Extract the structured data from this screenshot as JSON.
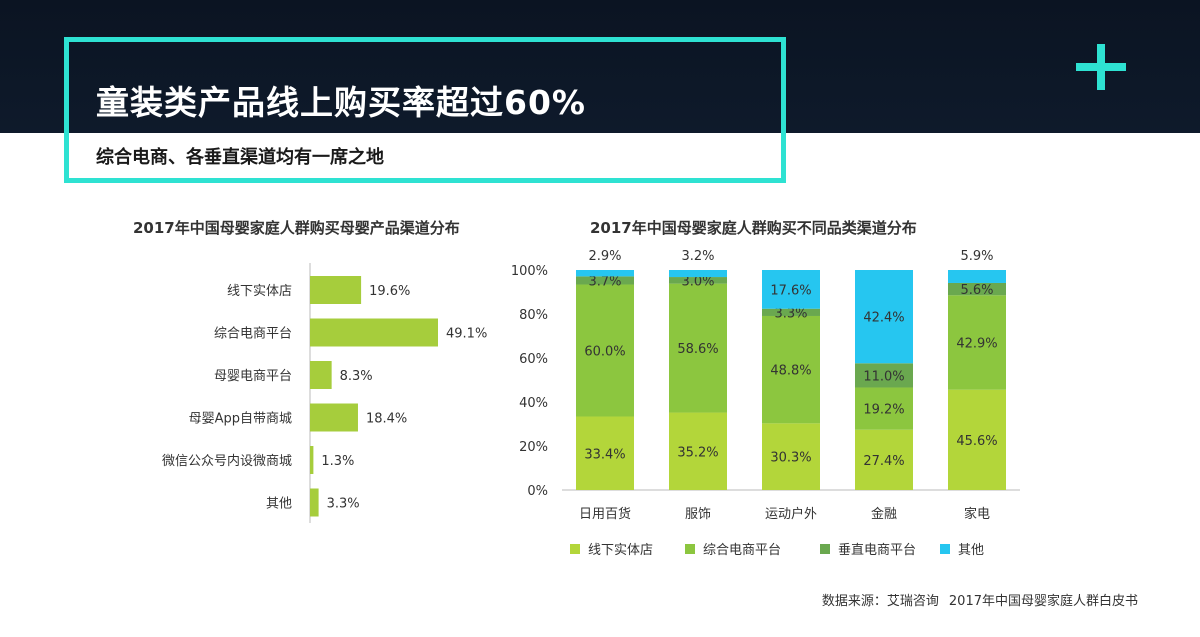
{
  "header": {
    "title": "童装类产品线上购买率超过60%",
    "subtitle": "综合电商、各垂直渠道均有一席之地"
  },
  "colors": {
    "accent": "#2ee2d2",
    "band": "#0e1a2b",
    "bar_left": "#a6cd3c",
    "s_offline": "#b3d63a",
    "s_ecom": "#8cc63f",
    "s_vertical": "#6aa84f",
    "s_other": "#26c6f0"
  },
  "chart_data": [
    {
      "type": "bar",
      "orientation": "horizontal",
      "title": "2017年中国母婴家庭人群购买母婴产品渠道分布",
      "categories": [
        "线下实体店",
        "综合电商平台",
        "母婴电商平台",
        "母婴App自带商城",
        "微信公众号内设微商城",
        "其他"
      ],
      "values": [
        19.6,
        49.1,
        8.3,
        18.4,
        1.3,
        3.3
      ],
      "value_labels": [
        "19.6%",
        "49.1%",
        "8.3%",
        "18.4%",
        "1.3%",
        "3.3%"
      ],
      "xlim": [
        0,
        60
      ]
    },
    {
      "type": "bar",
      "stacked": true,
      "title": "2017年中国母婴家庭人群购买不同品类渠道分布",
      "categories": [
        "日用百货",
        "服饰",
        "运动户外",
        "金融",
        "家电"
      ],
      "ylim": [
        0,
        100
      ],
      "yticks": [
        "0%",
        "20%",
        "40%",
        "60%",
        "80%",
        "100%"
      ],
      "legend_position": "bottom",
      "series": [
        {
          "name": "线下实体店",
          "values": [
            33.4,
            35.2,
            30.3,
            27.4,
            45.6
          ]
        },
        {
          "name": "综合电商平台",
          "values": [
            60.0,
            58.6,
            48.8,
            19.2,
            42.9
          ]
        },
        {
          "name": "垂直电商平台",
          "values": [
            3.7,
            3.0,
            3.3,
            11.0,
            5.6
          ]
        },
        {
          "name": "其他",
          "values": [
            2.9,
            3.2,
            17.6,
            42.4,
            5.9
          ]
        }
      ]
    }
  ],
  "footer": {
    "source_label": "数据来源：艾瑞咨询",
    "source_doc": "2017年中国母婴家庭人群白皮书"
  }
}
